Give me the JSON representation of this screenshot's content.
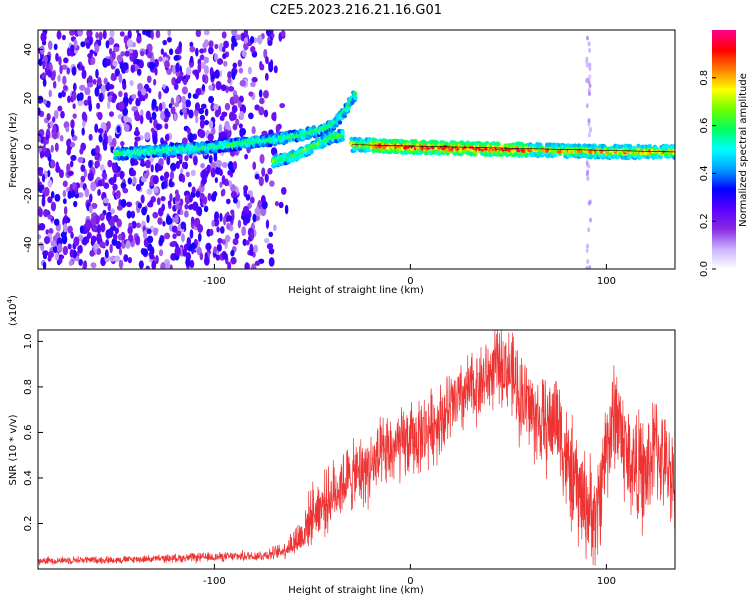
{
  "chart_data": [
    {
      "type": "heatmap",
      "title": "C2E5.2023.216.21.16.G01",
      "xlabel": "Height of straight line (km)",
      "ylabel": "Frequency (Hz)",
      "xlim": [
        -190,
        135
      ],
      "ylim": [
        -50,
        48
      ],
      "xticks": [
        -100,
        0,
        100
      ],
      "yticks": [
        -40,
        -20,
        0,
        20,
        40
      ],
      "colorbar": {
        "label": "Normalized spectral amplitude",
        "range": [
          0,
          1
        ],
        "ticks": [
          "0.0",
          "0.2",
          "0.4",
          "0.6",
          "0.8"
        ],
        "tick_values": [
          0,
          0.2,
          0.4,
          0.6,
          0.8
        ],
        "colors": [
          "#ffffff",
          "#c9b2ff",
          "#8a2be2",
          "#5a00ff",
          "#0000ff",
          "#00a0ff",
          "#00ffff",
          "#00ff60",
          "#6cff00",
          "#ffff00",
          "#ff8000",
          "#ff0000",
          "#ff0090"
        ]
      },
      "features": {
        "noise_region_x": [
          -190,
          -68
        ],
        "ridge_track": [
          [
            -150,
            -3
          ],
          [
            -120,
            -1
          ],
          [
            -100,
            0
          ],
          [
            -80,
            2
          ],
          [
            -70,
            3
          ],
          [
            -55,
            5
          ],
          [
            -42,
            8
          ],
          [
            -38,
            10
          ],
          [
            -34,
            14
          ],
          [
            -28,
            22
          ]
        ],
        "lower_branch": [
          [
            -70,
            -6
          ],
          [
            -60,
            -4
          ],
          [
            -50,
            0
          ],
          [
            -40,
            4
          ],
          [
            -34,
            5
          ]
        ],
        "steady_line": [
          [
            -30,
            1
          ],
          [
            0,
            0
          ],
          [
            50,
            -1
          ],
          [
            100,
            -2
          ],
          [
            135,
            -2
          ]
        ]
      }
    },
    {
      "type": "line",
      "xlabel": "Height of straight line (km)",
      "ylabel": "SNR (10 * v/v)",
      "scale_label": "(x10",
      "scale_exponent": "4",
      "scale_suffix": ")",
      "xlim": [
        -190,
        135
      ],
      "ylim": [
        0.0,
        1.05
      ],
      "xticks": [
        -100,
        0,
        100
      ],
      "yticks": [
        0.2,
        0.4,
        0.6,
        0.8,
        1.0
      ],
      "ytick_labels": [
        "0.2",
        "0.4",
        "0.6",
        "0.8",
        "1.0"
      ],
      "color": "#ee3333",
      "series": [
        {
          "name": "SNR",
          "x": [
            -190,
            -170,
            -150,
            -130,
            -110,
            -90,
            -75,
            -65,
            -55,
            -50,
            -45,
            -40,
            -35,
            -30,
            -20,
            -10,
            0,
            10,
            20,
            30,
            40,
            45,
            50,
            55,
            60,
            65,
            70,
            75,
            80,
            85,
            90,
            95,
            100,
            105,
            110,
            115,
            120,
            125,
            130,
            135
          ],
          "y": [
            0.035,
            0.04,
            0.04,
            0.045,
            0.05,
            0.055,
            0.06,
            0.08,
            0.15,
            0.25,
            0.28,
            0.32,
            0.38,
            0.4,
            0.45,
            0.52,
            0.56,
            0.62,
            0.7,
            0.78,
            0.85,
            0.9,
            0.88,
            0.78,
            0.72,
            0.65,
            0.62,
            0.68,
            0.45,
            0.35,
            0.28,
            0.22,
            0.55,
            0.7,
            0.5,
            0.45,
            0.4,
            0.55,
            0.45,
            0.42
          ],
          "noise_amplitude": [
            0.02,
            0.02,
            0.02,
            0.02,
            0.025,
            0.025,
            0.03,
            0.04,
            0.12,
            0.15,
            0.16,
            0.17,
            0.18,
            0.18,
            0.2,
            0.2,
            0.2,
            0.2,
            0.2,
            0.2,
            0.2,
            0.2,
            0.22,
            0.25,
            0.25,
            0.25,
            0.25,
            0.28,
            0.3,
            0.3,
            0.28,
            0.28,
            0.3,
            0.3,
            0.3,
            0.3,
            0.3,
            0.28,
            0.25,
            0.25
          ]
        }
      ]
    }
  ]
}
